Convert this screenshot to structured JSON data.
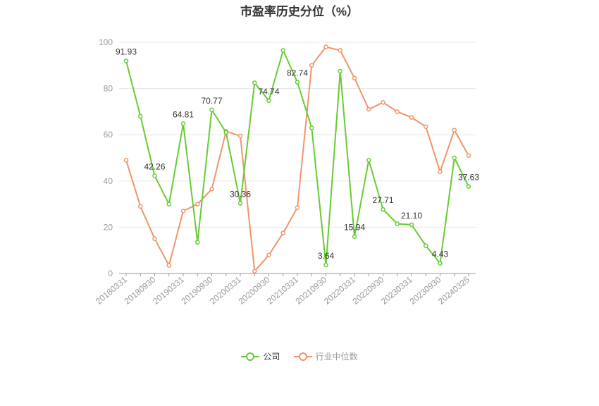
{
  "chart_data": {
    "type": "line",
    "title": "市盈率历史分位（%）",
    "ylim": [
      0,
      100
    ],
    "yticks": [
      0,
      20,
      40,
      60,
      80,
      100
    ],
    "grid": true,
    "legend_position": "bottom",
    "x": [
      "20180331",
      "20180630",
      "20180930",
      "20181231",
      "20190331",
      "20190630",
      "20190930",
      "20191231",
      "20200331",
      "20200630",
      "20200930",
      "20201231",
      "20210331",
      "20210630",
      "20210930",
      "20211231",
      "20220331",
      "20220630",
      "20220930",
      "20221231",
      "20230331",
      "20230630",
      "20230930",
      "20231231",
      "20240325"
    ],
    "xticks_shown": [
      "20180331",
      "20180930",
      "20190331",
      "20190930",
      "20200331",
      "20200930",
      "20210331",
      "20210930",
      "20220331",
      "20220930",
      "20230331",
      "20230930",
      "20240325"
    ],
    "series": [
      {
        "name": "公司",
        "color": "#66cc33",
        "values": [
          91.93,
          68,
          42.26,
          30,
          64.81,
          13.5,
          70.77,
          61,
          30.36,
          82.5,
          74.74,
          96.5,
          82.74,
          63,
          3.64,
          87.5,
          15.94,
          49,
          27.71,
          21.5,
          21.1,
          12,
          4.43,
          50,
          37.63
        ],
        "labels": {
          "0": "91.93",
          "2": "42.26",
          "4": "64.81",
          "6": "70.77",
          "8": "30.36",
          "10": "74.74",
          "12": "82.74",
          "14": "3.64",
          "16": "15.94",
          "18": "27.71",
          "20": "21.10",
          "22": "4.43",
          "24": "37.63"
        }
      },
      {
        "name": "行业中位数",
        "color": "#f0956a",
        "values": [
          49,
          29,
          15,
          3.5,
          27,
          30,
          36.5,
          61.5,
          59.5,
          1,
          8,
          17.5,
          28.5,
          90,
          98,
          96.5,
          84.5,
          71,
          74,
          70,
          67.5,
          63.5,
          44,
          62,
          51
        ]
      }
    ]
  }
}
